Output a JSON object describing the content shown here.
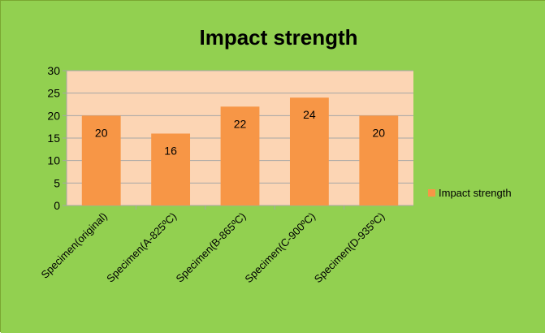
{
  "colors": {
    "chart_background": "#92d050",
    "plot_background": "#fcd5b4",
    "bar": "#f79646",
    "gridline": "#a6a6a6",
    "text": "#000000"
  },
  "chart_data": {
    "type": "bar",
    "title": "Impact strength",
    "xlabel": "",
    "ylabel": "",
    "categories": [
      "Specimen(original)",
      "Specimen(A-825ºC)",
      "Specimen(B-865ºC)",
      "Specimen(C-900ºC)",
      "Specimen(D-935ºC)"
    ],
    "series": [
      {
        "name": "Impact strength",
        "values": [
          20,
          16,
          22,
          24,
          20
        ]
      }
    ],
    "ylim": [
      0,
      30
    ],
    "yticks": [
      0,
      5,
      10,
      15,
      20,
      25,
      30
    ],
    "grid": true,
    "legend": "right",
    "data_labels": true
  }
}
